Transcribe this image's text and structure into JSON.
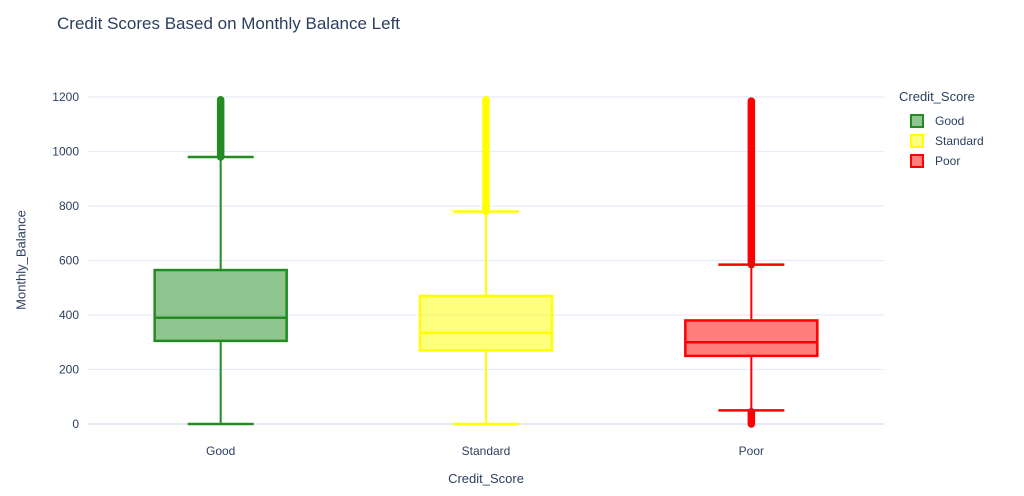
{
  "title": "Credit Scores Based on Monthly Balance Left",
  "legend": {
    "title": "Credit_Score"
  },
  "colors": {
    "text": "#2a3f5f",
    "grid": "#e7edf6",
    "zeroline": "#e3eaf4",
    "background": "#ffffff",
    "good": "#228b22",
    "standard": "#ffff00",
    "poor": "#ff0000"
  },
  "chart_data": {
    "type": "box",
    "title": "Credit Scores Based on Monthly Balance Left",
    "xlabel": "Credit_Score",
    "ylabel": "Monthly_Balance",
    "ylim": [
      0,
      1200
    ],
    "yticks": [
      0,
      200,
      400,
      600,
      800,
      1000,
      1200
    ],
    "categories": [
      "Good",
      "Standard",
      "Poor"
    ],
    "grid": true,
    "legend_title": "Credit_Score",
    "legend_position": "right",
    "series": [
      {
        "name": "Good",
        "color": "#228b22",
        "lowerfence": 0,
        "q1": 305,
        "median": 390,
        "q3": 565,
        "upperfence": 980,
        "outliers_high_range": [
          980,
          1190
        ],
        "outliers_low_range": null
      },
      {
        "name": "Standard",
        "color": "#ffff00",
        "lowerfence": 0,
        "q1": 270,
        "median": 335,
        "q3": 470,
        "upperfence": 780,
        "outliers_high_range": [
          780,
          1190
        ],
        "outliers_low_range": null
      },
      {
        "name": "Poor",
        "color": "#ff0000",
        "lowerfence": 50,
        "q1": 250,
        "median": 300,
        "q3": 380,
        "upperfence": 585,
        "outliers_high_range": [
          585,
          1185
        ],
        "outliers_low_range": [
          0,
          45
        ]
      }
    ]
  }
}
